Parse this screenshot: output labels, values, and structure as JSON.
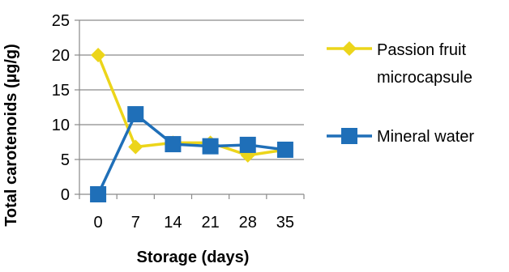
{
  "chart_data": {
    "type": "line",
    "title": "",
    "xlabel": "Storage (days)",
    "ylabel": "Total carotenoids (µg/g)",
    "categories": [
      "0",
      "7",
      "14",
      "21",
      "28",
      "35"
    ],
    "ylim": [
      0,
      25
    ],
    "yticks": [
      "0",
      "5",
      "10",
      "15",
      "20",
      "25"
    ],
    "grid": "horizontal",
    "legend_position": "right",
    "series": [
      {
        "name_lines": [
          "Passion fruit",
          "microcapsule"
        ],
        "values": [
          20,
          6.8,
          7.4,
          7.4,
          5.6,
          6.4
        ],
        "color": "#ecd51a",
        "marker": "diamond"
      },
      {
        "name_lines": [
          "Mineral water"
        ],
        "values": [
          0,
          11.5,
          7.2,
          6.9,
          7.1,
          6.4
        ],
        "color": "#1f6fb8",
        "marker": "square"
      }
    ]
  }
}
